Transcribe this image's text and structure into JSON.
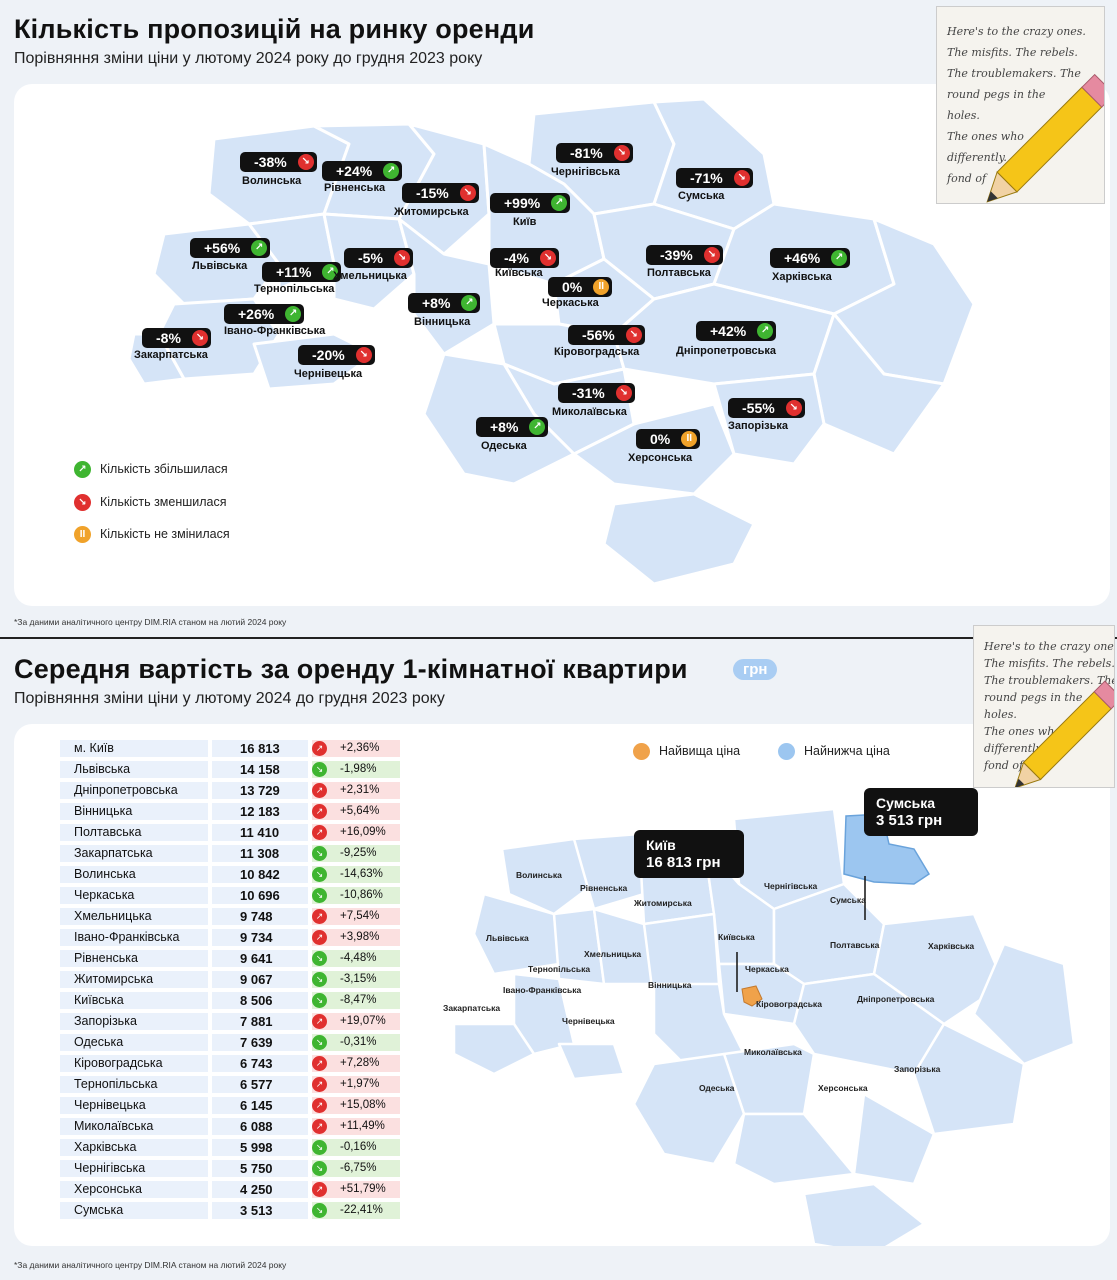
{
  "section1": {
    "title": "Кількість пропозицій на ринку оренди",
    "subtitle": "Порівняння зміни ціни у лютому 2024 року до грудня 2023 року",
    "footnote": "*За даними аналітичного центру DIM.RIA станом на лютий 2024 року",
    "legend": [
      {
        "label": "Кількість збільшилася",
        "type": "up"
      },
      {
        "label": "Кількість зменшилася",
        "type": "down"
      },
      {
        "label": "Кількість не змінилася",
        "type": "same"
      }
    ],
    "regions": [
      {
        "name": "Волинська",
        "change": "-38%",
        "type": "down"
      },
      {
        "name": "Рівненська",
        "change": "+24%",
        "type": "up"
      },
      {
        "name": "Житомирська",
        "change": "-15%",
        "type": "down"
      },
      {
        "name": "Київ",
        "change": "+99%",
        "type": "up"
      },
      {
        "name": "Чернігівська",
        "change": "-81%",
        "type": "down"
      },
      {
        "name": "Сумська",
        "change": "-71%",
        "type": "down"
      },
      {
        "name": "Львівська",
        "change": "+56%",
        "type": "up"
      },
      {
        "name": "Тернопільська",
        "change": "+11%",
        "type": "up"
      },
      {
        "name": "Хмельницька",
        "change": "-5%",
        "type": "down"
      },
      {
        "name": "Київська",
        "change": "-4%",
        "type": "down"
      },
      {
        "name": "Полтавська",
        "change": "-39%",
        "type": "down"
      },
      {
        "name": "Харківська",
        "change": "+46%",
        "type": "up"
      },
      {
        "name": "Черкаська",
        "change": "0%",
        "type": "same"
      },
      {
        "name": "Вінницька",
        "change": "+8%",
        "type": "up"
      },
      {
        "name": "Івано-Франківська",
        "change": "+26%",
        "type": "up"
      },
      {
        "name": "Закарпатська",
        "change": "-8%",
        "type": "down"
      },
      {
        "name": "Чернівецька",
        "change": "-20%",
        "type": "down"
      },
      {
        "name": "Кіровоградська",
        "change": "-56%",
        "type": "down"
      },
      {
        "name": "Дніпропетровська",
        "change": "+42%",
        "type": "up"
      },
      {
        "name": "Миколаївська",
        "change": "-31%",
        "type": "down"
      },
      {
        "name": "Запорізька",
        "change": "-55%",
        "type": "down"
      },
      {
        "name": "Одеська",
        "change": "+8%",
        "type": "up"
      },
      {
        "name": "Херсонська",
        "change": "0%",
        "type": "same"
      }
    ]
  },
  "section2": {
    "title": "Середня вартість за оренду 1-кімнатної квартири",
    "unit": "грн",
    "subtitle": "Порівняння зміни ціни у лютому 2024 до грудня 2023 року",
    "footnote": "*За даними аналітичного центру DIM.RIA станом на лютий 2024 року",
    "legend": [
      {
        "label": "Найвища ціна",
        "color": "#f0a24a"
      },
      {
        "label": "Найнижча ціна",
        "color": "#9cc6f0"
      }
    ],
    "callouts": {
      "highest": {
        "region": "Київ",
        "price": "16 813 грн"
      },
      "lowest": {
        "region": "Сумська",
        "price": "3 513 грн"
      }
    },
    "table": [
      {
        "region": "м. Київ",
        "price": "16 813",
        "change": "+2,36%",
        "dir": "pos"
      },
      {
        "region": "Львівська",
        "price": "14 158",
        "change": "-1,98%",
        "dir": "neg"
      },
      {
        "region": "Дніпропетровська",
        "price": "13 729",
        "change": "+2,31%",
        "dir": "pos"
      },
      {
        "region": "Вінницька",
        "price": "12 183",
        "change": "+5,64%",
        "dir": "pos"
      },
      {
        "region": "Полтавська",
        "price": "11 410",
        "change": "+16,09%",
        "dir": "pos"
      },
      {
        "region": "Закарпатська",
        "price": "11 308",
        "change": "-9,25%",
        "dir": "neg"
      },
      {
        "region": "Волинська",
        "price": "10 842",
        "change": "-14,63%",
        "dir": "neg"
      },
      {
        "region": "Черкаська",
        "price": "10 696",
        "change": "-10,86%",
        "dir": "neg"
      },
      {
        "region": "Хмельницька",
        "price": "9 748",
        "change": "+7,54%",
        "dir": "pos"
      },
      {
        "region": "Івано-Франківська",
        "price": "9 734",
        "change": "+3,98%",
        "dir": "pos"
      },
      {
        "region": "Рівненська",
        "price": "9 641",
        "change": "-4,48%",
        "dir": "neg"
      },
      {
        "region": "Житомирська",
        "price": "9 067",
        "change": "-3,15%",
        "dir": "neg"
      },
      {
        "region": "Київська",
        "price": "8 506",
        "change": "-8,47%",
        "dir": "neg"
      },
      {
        "region": "Запорізька",
        "price": "7 881",
        "change": "+19,07%",
        "dir": "pos"
      },
      {
        "region": "Одеська",
        "price": "7 639",
        "change": "-0,31%",
        "dir": "neg"
      },
      {
        "region": "Кіровоградська",
        "price": "6 743",
        "change": "+7,28%",
        "dir": "pos"
      },
      {
        "region": "Тернопільська",
        "price": "6 577",
        "change": "+1,97%",
        "dir": "pos"
      },
      {
        "region": "Чернівецька",
        "price": "6 145",
        "change": "+15,08%",
        "dir": "pos"
      },
      {
        "region": "Миколаївська",
        "price": "6 088",
        "change": "+11,49%",
        "dir": "pos"
      },
      {
        "region": "Харківська",
        "price": "5 998",
        "change": "-0,16%",
        "dir": "neg"
      },
      {
        "region": "Чернігівська",
        "price": "5 750",
        "change": "-6,75%",
        "dir": "neg"
      },
      {
        "region": "Херсонська",
        "price": "4 250",
        "change": "+51,79%",
        "dir": "pos"
      },
      {
        "region": "Сумська",
        "price": "3 513",
        "change": "-22,41%",
        "dir": "neg"
      }
    ],
    "map_labels": [
      "Волинська",
      "Рівненська",
      "Житомирська",
      "Чернігівська",
      "Сумська",
      "Львівська",
      "Хмельницька",
      "Київська",
      "Полтавська",
      "Харківська",
      "Тернопільська",
      "Черкаська",
      "Івано-Франківська",
      "Вінницька",
      "Закарпатська",
      "Кіровоградська",
      "Дніпропетровська",
      "Чернівецька",
      "Миколаївська",
      "Запорізька",
      "Одеська",
      "Херсонська"
    ]
  },
  "note_sticker": {
    "icon": "notepad-pencil-icon",
    "lines": [
      "Here's to the crazy ones.",
      "The misfits. The rebels.",
      "The troublemakers. The",
      "round pegs in the",
      "holes.",
      "The ones who",
      "differently.",
      "fond of"
    ]
  }
}
